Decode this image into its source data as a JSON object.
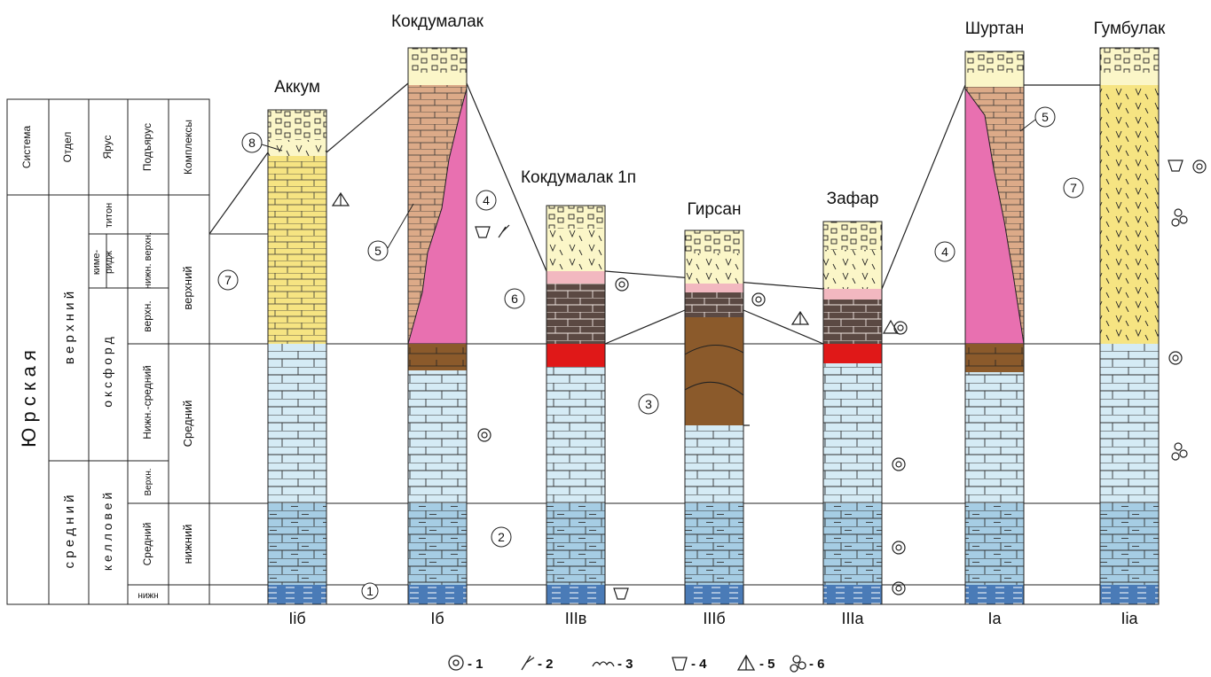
{
  "stratigraphy": {
    "headers": [
      "Система",
      "Отдел",
      "Ярус",
      "Подъярус",
      "Комплексы"
    ],
    "system": "Ю р с к а я",
    "upper_series": "в е р х н и й",
    "middle_series": "с р е д н и й",
    "stage_tithonian": "титон",
    "stage_kimmeridgian": "киме-\nридж",
    "stage_oxfordian": "о к с ф о р д",
    "stage_callovian": "к е л л о в е й",
    "sub_kim_lower_upper": "нижн. верхн.",
    "sub_ox_upper": "верхн.",
    "sub_ox_lower_middle": "Нижн.-средний",
    "sub_call_upper": "Верхн.",
    "sub_call_middle": "Средний",
    "sub_call_lower": "нижн",
    "complex_upper": "верхний",
    "complex_middle": "Средний",
    "complex_lower": "нижний"
  },
  "wells": [
    {
      "name": "Аккум",
      "code": "Iiб"
    },
    {
      "name": "Кокдумалак",
      "code": "Iб"
    },
    {
      "name": "Кокдумалак 1п",
      "code": "IIIв"
    },
    {
      "name": "Гирсан",
      "code": "IIIб"
    },
    {
      "name": "Зафар",
      "code": "IIIа"
    },
    {
      "name": "Шуртан",
      "code": "Iа"
    },
    {
      "name": "Гумбулак",
      "code": "Iiа"
    }
  ],
  "circled_numbers": [
    "1",
    "2",
    "3",
    "4",
    "4",
    "5",
    "5",
    "6",
    "7",
    "7",
    "8"
  ],
  "legend": [
    {
      "num": "1",
      "icon": "ammonite-icon"
    },
    {
      "num": "2",
      "icon": "coral-branch-icon"
    },
    {
      "num": "3",
      "icon": "algae-icon"
    },
    {
      "num": "4",
      "icon": "brachiopod-icon"
    },
    {
      "num": "5",
      "icon": "bivalve-icon"
    },
    {
      "num": "6",
      "icon": "foraminifera-icon"
    }
  ],
  "colors": {
    "anhydrite": "#fbf6c8",
    "salt_top": "#fdf3b0",
    "yellow_limestone": "#f6e482",
    "pink_reef": "#e870b0",
    "tan_rim": "#dcaa88",
    "dark_brown": "#5b4943",
    "red_bed": "#e01818",
    "brown": "#8b5a2b",
    "light_blue": "#d5ebf5",
    "mid_blue": "#a6cde4",
    "dark_blue": "#4a7bb7",
    "light_pink": "#f2b8c0"
  }
}
